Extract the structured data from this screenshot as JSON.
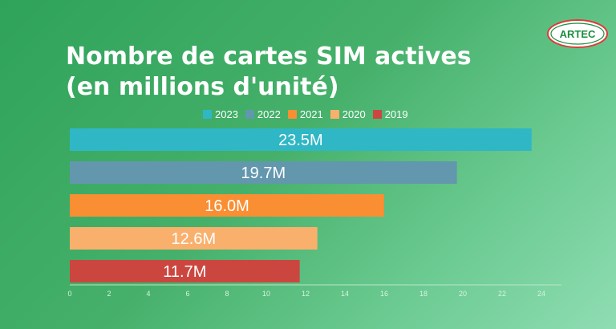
{
  "title_lines": [
    "Nombre de cartes SIM actives",
    "(en millions d'unité)"
  ],
  "logo_text": "ARTEC",
  "chart_data": {
    "type": "bar",
    "orientation": "horizontal",
    "categories": [
      "2023",
      "2022",
      "2021",
      "2020",
      "2019"
    ],
    "values": [
      23.5,
      19.7,
      16.0,
      12.6,
      11.7
    ],
    "data_labels": [
      "23.5M",
      "19.7M",
      "16.0M",
      "12.6M",
      "11.7M"
    ],
    "colors": [
      "#2fb7c5",
      "#6397ad",
      "#fa8e32",
      "#f9b06d",
      "#cc4640"
    ],
    "xlim": [
      0,
      24
    ],
    "xticks": [
      0,
      2,
      4,
      6,
      8,
      10,
      12,
      14,
      16,
      18,
      20,
      22,
      24
    ],
    "legend_position": "top",
    "grid": false
  },
  "logo_colors": {
    "ring": "#e03a3a",
    "text": "#1a8f3e"
  }
}
